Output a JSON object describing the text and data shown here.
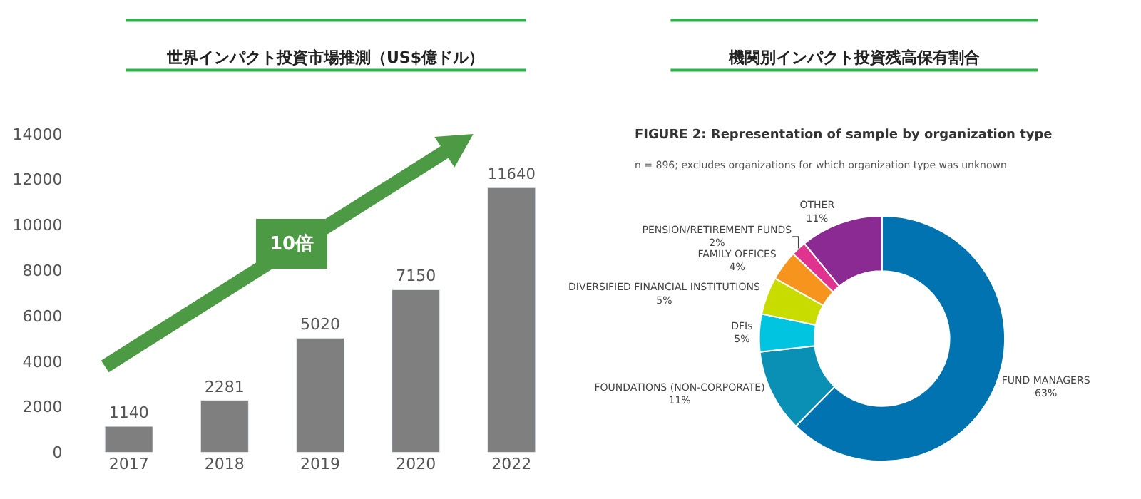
{
  "chart_data": [
    {
      "type": "bar",
      "title": "世界インパクト投資市場推測（US$億ドル）",
      "categories": [
        "2017",
        "2018",
        "2019",
        "2020",
        "2022"
      ],
      "values": [
        1140,
        2281,
        5020,
        7150,
        11640
      ],
      "color": "#7f7f7f",
      "ylim": [
        0,
        14000
      ],
      "yticks": [
        0,
        2000,
        4000,
        6000,
        8000,
        10000,
        12000,
        14000
      ],
      "legend": false,
      "data_labels": true,
      "annotations": [
        "10倍"
      ]
    },
    {
      "type": "donut",
      "title": "機関別インパクト投資残高保有割合",
      "subtitle": "FIGURE 2: Representation of sample by organization type",
      "legend": false,
      "categories": [
        "FUND MANAGERS",
        "FOUNDATIONS (NON-CORPORATE)",
        "DFIs",
        "DIVERSIFIED FINANCIAL INSTITUTIONS",
        "FAMILY OFFICES",
        "PENSION/RETIREMENT FUNDS",
        "OTHER"
      ],
      "values": [
        63,
        11,
        5,
        5,
        4,
        2,
        11
      ],
      "value_labels": [
        "63%",
        "11%",
        "5%",
        "5%",
        "4%",
        "2%",
        "11%"
      ],
      "colors": [
        "#0073b0",
        "#0a8fb5",
        "#00c4e0",
        "#c8dc00",
        "#f7941d",
        "#e0338f",
        "#8a2a92"
      ],
      "annotations": [
        "n = 896; excludes organizations for which organization type was unknown"
      ]
    }
  ]
}
